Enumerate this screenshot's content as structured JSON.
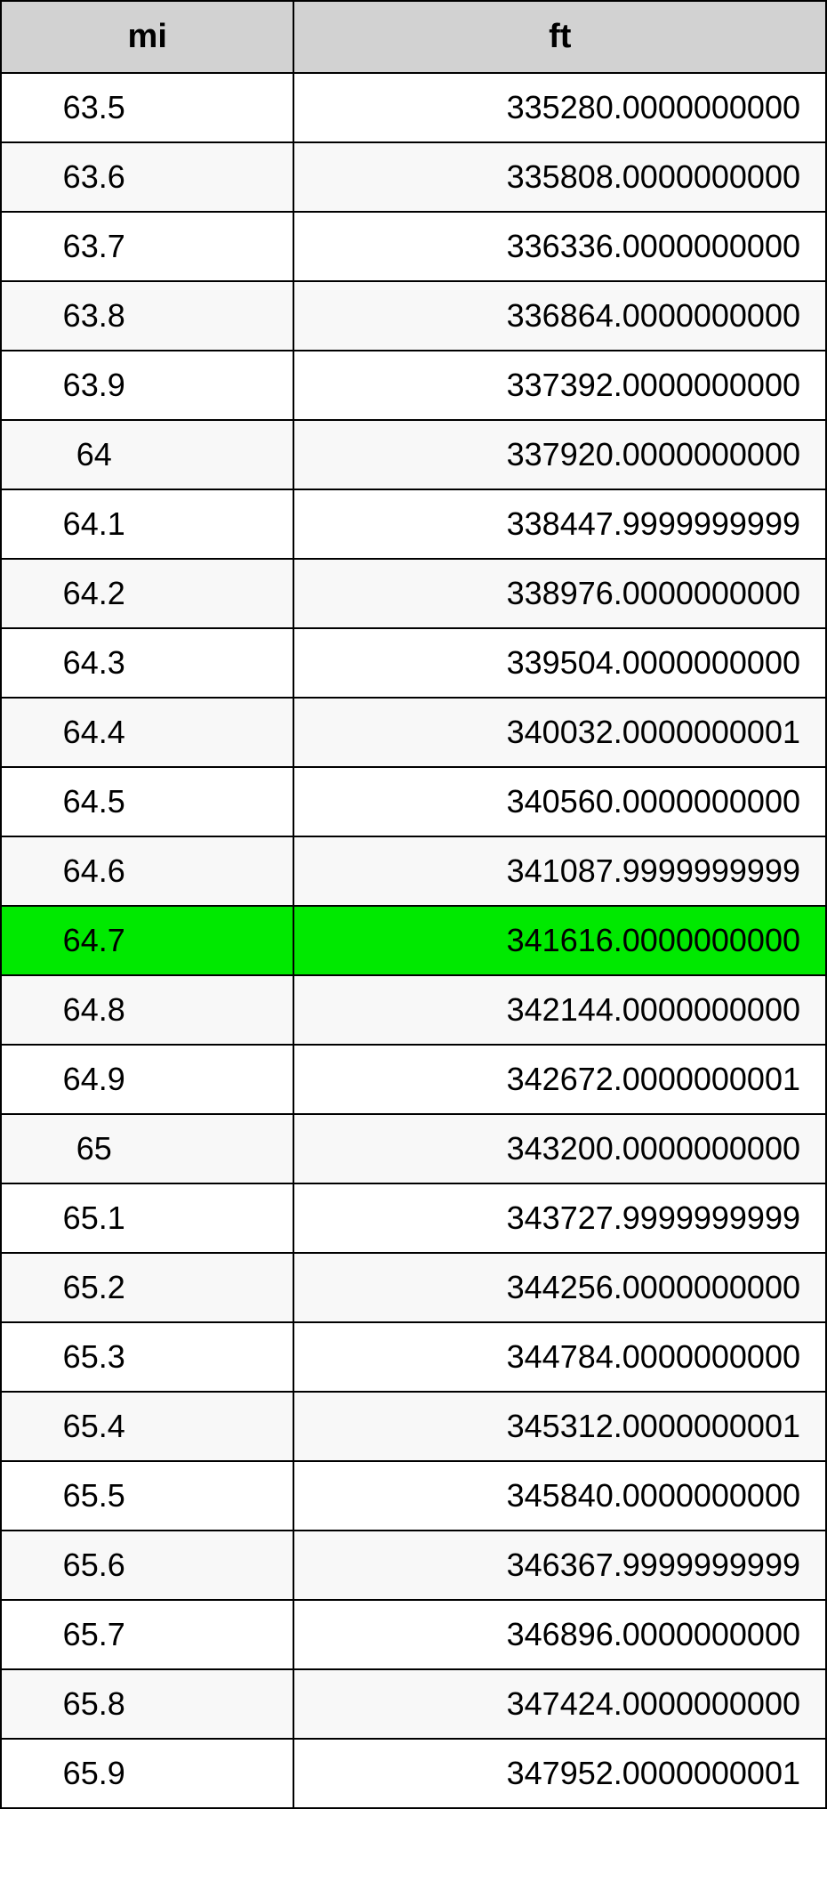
{
  "table": {
    "type": "table",
    "columns": [
      {
        "key": "mi",
        "label": "mi",
        "align": "center",
        "width_pct": 35.5
      },
      {
        "key": "ft",
        "label": "ft",
        "align": "right",
        "width_pct": 64.5
      }
    ],
    "header_bg": "#d2d2d2",
    "header_fontsize": 38,
    "header_fontweight": "bold",
    "cell_fontsize": 36,
    "border_color": "#000000",
    "border_width": 2,
    "row_odd_bg": "#ffffff",
    "row_even_bg": "#f8f8f8",
    "highlight_bg": "#00e900",
    "highlight_index": 12,
    "rows": [
      {
        "mi": "63.5",
        "ft": "335280.0000000000"
      },
      {
        "mi": "63.6",
        "ft": "335808.0000000000"
      },
      {
        "mi": "63.7",
        "ft": "336336.0000000000"
      },
      {
        "mi": "63.8",
        "ft": "336864.0000000000"
      },
      {
        "mi": "63.9",
        "ft": "337392.0000000000"
      },
      {
        "mi": "64",
        "ft": "337920.0000000000"
      },
      {
        "mi": "64.1",
        "ft": "338447.9999999999"
      },
      {
        "mi": "64.2",
        "ft": "338976.0000000000"
      },
      {
        "mi": "64.3",
        "ft": "339504.0000000000"
      },
      {
        "mi": "64.4",
        "ft": "340032.0000000001"
      },
      {
        "mi": "64.5",
        "ft": "340560.0000000000"
      },
      {
        "mi": "64.6",
        "ft": "341087.9999999999"
      },
      {
        "mi": "64.7",
        "ft": "341616.0000000000"
      },
      {
        "mi": "64.8",
        "ft": "342144.0000000000"
      },
      {
        "mi": "64.9",
        "ft": "342672.0000000001"
      },
      {
        "mi": "65",
        "ft": "343200.0000000000"
      },
      {
        "mi": "65.1",
        "ft": "343727.9999999999"
      },
      {
        "mi": "65.2",
        "ft": "344256.0000000000"
      },
      {
        "mi": "65.3",
        "ft": "344784.0000000000"
      },
      {
        "mi": "65.4",
        "ft": "345312.0000000001"
      },
      {
        "mi": "65.5",
        "ft": "345840.0000000000"
      },
      {
        "mi": "65.6",
        "ft": "346367.9999999999"
      },
      {
        "mi": "65.7",
        "ft": "346896.0000000000"
      },
      {
        "mi": "65.8",
        "ft": "347424.0000000000"
      },
      {
        "mi": "65.9",
        "ft": "347952.0000000001"
      }
    ]
  }
}
